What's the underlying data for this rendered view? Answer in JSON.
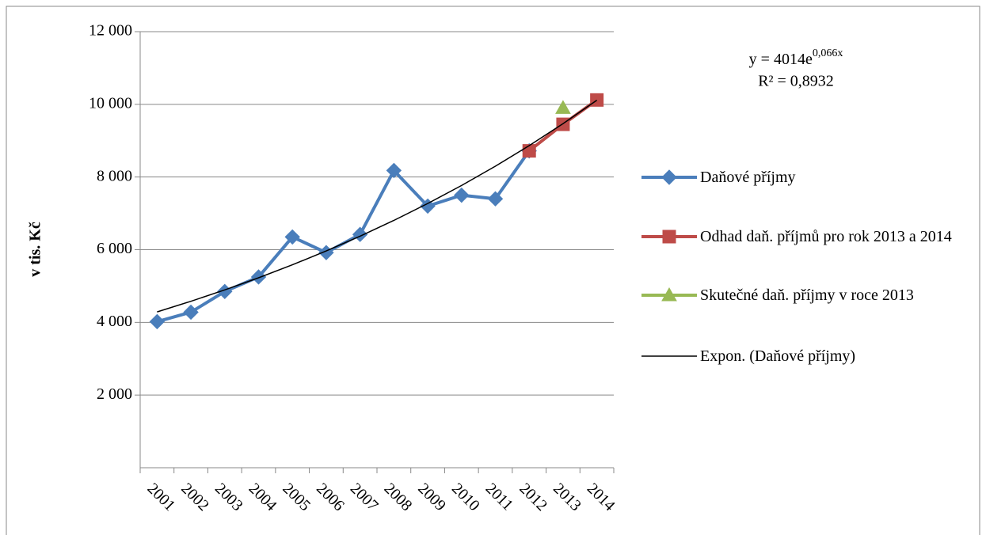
{
  "chart_data": {
    "type": "line",
    "y_label": "v tis. Kč",
    "categories": [
      "2001",
      "2002",
      "2003",
      "2004",
      "2005",
      "2006",
      "2007",
      "2008",
      "2009",
      "2010",
      "2011",
      "2012",
      "2013",
      "2014"
    ],
    "ylim": [
      0,
      12000
    ],
    "yticks": [
      {
        "value": 2000,
        "label": "2 000"
      },
      {
        "value": 4000,
        "label": "4 000"
      },
      {
        "value": 6000,
        "label": "6 000"
      },
      {
        "value": 8000,
        "label": "8 000"
      },
      {
        "value": 10000,
        "label": "10 000"
      },
      {
        "value": 12000,
        "label": "12 000"
      }
    ],
    "grid": true,
    "legend": "right",
    "equation": {
      "base": "y = 4014e",
      "exponent": "0,066x",
      "r2": "R² = 0,8932"
    },
    "series": [
      {
        "name": "Daňové příjmy",
        "color": "#4a7ebb",
        "marker": "diamond",
        "values": [
          4020,
          4280,
          4850,
          5250,
          6350,
          5920,
          6420,
          8180,
          7200,
          7500,
          7400,
          8720,
          null,
          null
        ]
      },
      {
        "name": "Odhad daň. příjmů pro rok 2013 a 2014",
        "color": "#be4b48",
        "marker": "square",
        "values": [
          null,
          null,
          null,
          null,
          null,
          null,
          null,
          null,
          null,
          null,
          null,
          8720,
          9450,
          10120
        ]
      },
      {
        "name": "Skutečné daň. příjmy v roce 2013",
        "color": "#98b954",
        "marker": "triangle",
        "values": [
          null,
          null,
          null,
          null,
          null,
          null,
          null,
          null,
          null,
          null,
          null,
          null,
          9900,
          null
        ]
      },
      {
        "name": "Expon. (Daňové příjmy)",
        "color": "#000000",
        "marker": "none",
        "values": [
          4288,
          4581,
          4893,
          5227,
          5584,
          5965,
          6372,
          6806,
          7271,
          7767,
          8297,
          8863,
          9468,
          10114
        ]
      }
    ]
  }
}
